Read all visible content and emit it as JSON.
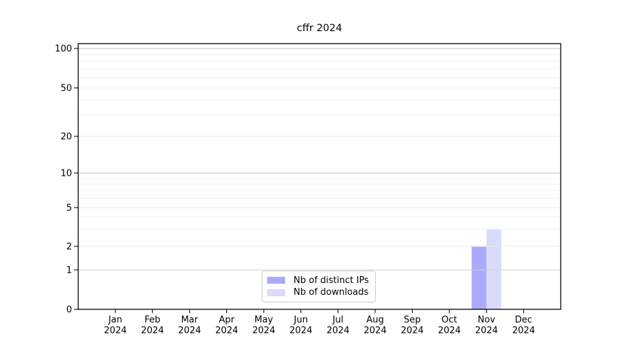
{
  "chart_data": {
    "type": "bar",
    "title": "cffr 2024",
    "categories": [
      "Jan",
      "Feb",
      "Mar",
      "Apr",
      "May",
      "Jun",
      "Jul",
      "Aug",
      "Sep",
      "Oct",
      "Nov",
      "Dec"
    ],
    "year_label": "2024",
    "series": [
      {
        "name": "Nb of distinct IPs",
        "color": "#aaaafa",
        "values": [
          0,
          0,
          0,
          0,
          0,
          0,
          0,
          0,
          0,
          0,
          2,
          0
        ]
      },
      {
        "name": "Nb of downloads",
        "color": "#dadafa",
        "values": [
          0,
          0,
          0,
          0,
          0,
          0,
          0,
          0,
          0,
          0,
          3,
          0
        ]
      }
    ],
    "y_ticks": [
      0,
      1,
      2,
      5,
      10,
      20,
      50,
      100
    ],
    "y_minor_ticks": [
      3,
      4,
      6,
      7,
      8,
      9,
      30,
      40,
      60,
      70,
      80,
      90
    ],
    "ylim": [
      0,
      110
    ],
    "xlabel": "",
    "ylabel": "",
    "grid": true,
    "scale": "symlog",
    "legend_position": "lower center",
    "colors": {
      "spine": "#000000",
      "grid_minor": "#f2f2f2",
      "grid_major_light": "#ececec",
      "grid_major_dark": "#bfbfbf",
      "grid_unit_line": "#d2d2d2",
      "legend_border": "#cccccc"
    }
  }
}
